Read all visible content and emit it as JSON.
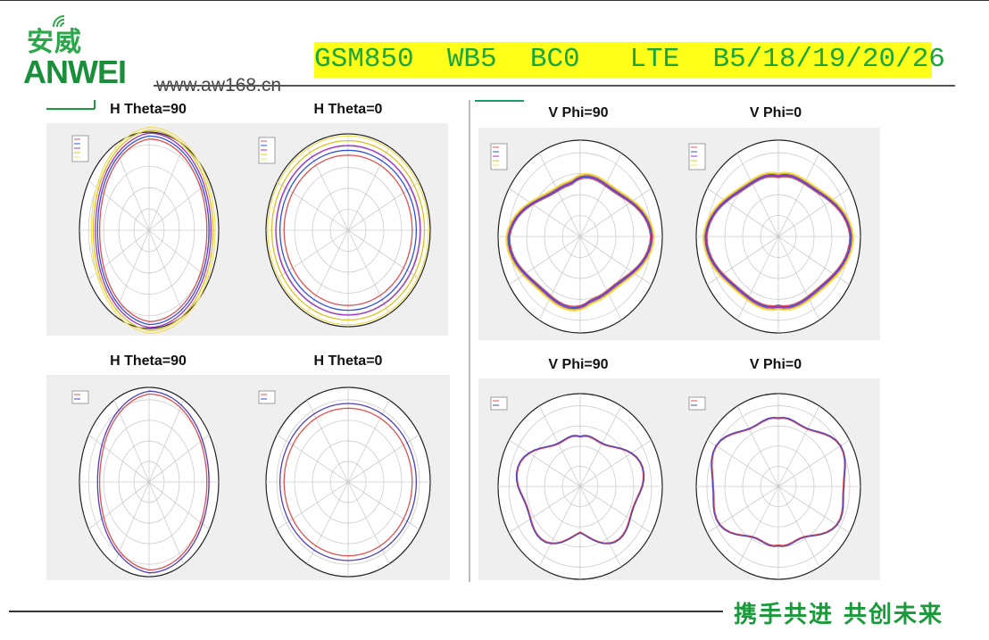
{
  "brand": {
    "name_cn": "安威",
    "name_en": "ANWEI",
    "website": "www.aw168.cn",
    "color": "#1a9a3a"
  },
  "header": {
    "title": "GSM850  WB5  BC0   LTE  B5/18/19/20/26",
    "banner_color": "#ffff1a"
  },
  "plots": [
    {
      "title": "H Theta=90"
    },
    {
      "title": "H Theta=0"
    },
    {
      "title": "V Phi=90"
    },
    {
      "title": "V Phi=0"
    },
    {
      "title": "H Theta=90"
    },
    {
      "title": "H Theta=0"
    },
    {
      "title": "V Phi=90"
    },
    {
      "title": "V Phi=0"
    }
  ],
  "series_colors": {
    "top": [
      "#e05050",
      "#3050e0",
      "#9a30c0",
      "#e0c020",
      "#f0e060"
    ],
    "bottom": [
      "#e05050",
      "#5040c0"
    ]
  },
  "footer": {
    "slogan": "携手共进  共创未来"
  }
}
